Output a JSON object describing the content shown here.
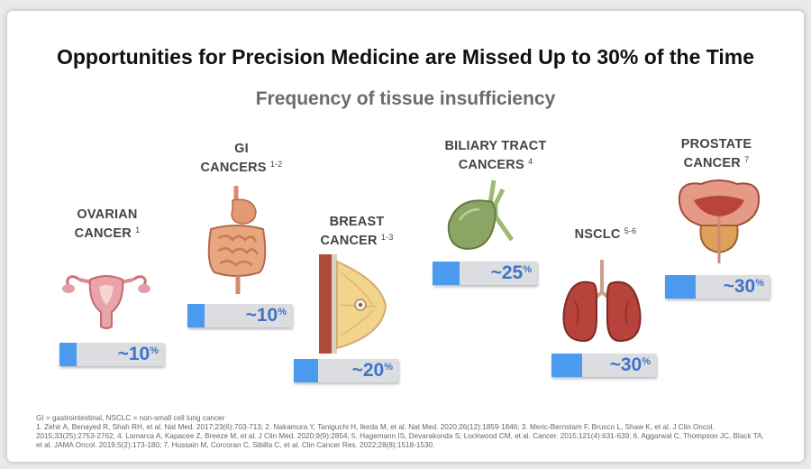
{
  "title": "Opportunities for Precision Medicine are Missed Up to 30% of the Time",
  "subtitle": "Frequency of tissue insufficiency",
  "colors": {
    "bar_fill": "#4a9bf0",
    "bar_track": "#dcdde0",
    "value_text": "#3e74c9"
  },
  "cancers": [
    {
      "line1": "OVARIAN",
      "line2": "CANCER",
      "ref": "1",
      "value": "~10",
      "unit": "%",
      "percent": 10,
      "icon": "uterus-icon"
    },
    {
      "line1": "GI",
      "line2": "CANCERS",
      "ref": "1-2",
      "value": "~10",
      "unit": "%",
      "percent": 10,
      "icon": "digestive-system-icon"
    },
    {
      "line1": "BREAST",
      "line2": "CANCER",
      "ref": "1-3",
      "value": "~20",
      "unit": "%",
      "percent": 20,
      "icon": "breast-icon"
    },
    {
      "line1": "BILIARY TRACT",
      "line2": "CANCERS",
      "ref": "4",
      "value": "~25",
      "unit": "%",
      "percent": 25,
      "icon": "gallbladder-icon"
    },
    {
      "line1": "",
      "line2": "NSCLC",
      "ref": "5-6",
      "value": "~30",
      "unit": "%",
      "percent": 30,
      "icon": "lungs-icon"
    },
    {
      "line1": "PROSTATE",
      "line2": "CANCER",
      "ref": "7",
      "value": "~30",
      "unit": "%",
      "percent": 30,
      "icon": "prostate-icon"
    }
  ],
  "footnote": {
    "abbreviations": "GI = gastrointestinal, NSCLC = non-small cell lung cancer",
    "references": [
      "1. Zehir A, Benayed R, Shah RH, et al. Nat Med. 2017;23(6):703-713; 2. Nakamura Y, Taniguchi H, Ikeda M, et al. Nat Med. 2020;26(12):1859-1846; 3. Meric-Bernstam F, Brusco L, Shaw K, et al. J Clin Oncol.",
      "2015;33(25):2753-2762; 4. Lamarca A, Kapacee Z, Breeze M, et al. J Clin Med. 2020;9(9):2854; 5. Hagemann IS, Devarakonda S, Lockwood CM, et al. Cancer. 2015;121(4):631-639; 6. Aggarwal C, Thompson JC, Black TA,",
      "et al. JAMA Oncol. 2019;5(2):173-180; 7. Hussain M, Corcoran C, Sibilla C, et al. Clin Cancer Res. 2022;28(8):1518-1530."
    ]
  }
}
